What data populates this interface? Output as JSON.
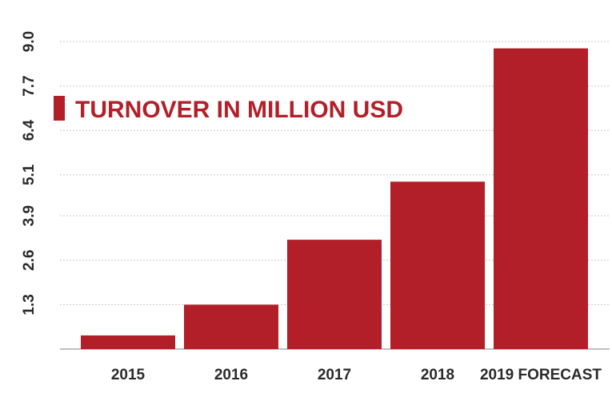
{
  "chart_data": {
    "type": "bar",
    "title": "",
    "xlabel": "",
    "ylabel": "",
    "categories": [
      "2015",
      "2016",
      "2017",
      "2018",
      "2019 FORECAST"
    ],
    "series": [
      {
        "name": "TURNOVER IN MILLION USD",
        "values": [
          0.4,
          1.3,
          3.2,
          4.9,
          8.8
        ]
      }
    ],
    "y_ticks": [
      "1.3",
      "2.6",
      "3.9",
      "5.1",
      "6.4",
      "7.7",
      "9.0"
    ],
    "ylim": [
      0,
      9.0
    ],
    "grid": true,
    "legend_position": "top-left",
    "bar_color": "#b31f28",
    "grid_color": "#c8c8c8",
    "text_color": "#2a2a2a"
  }
}
